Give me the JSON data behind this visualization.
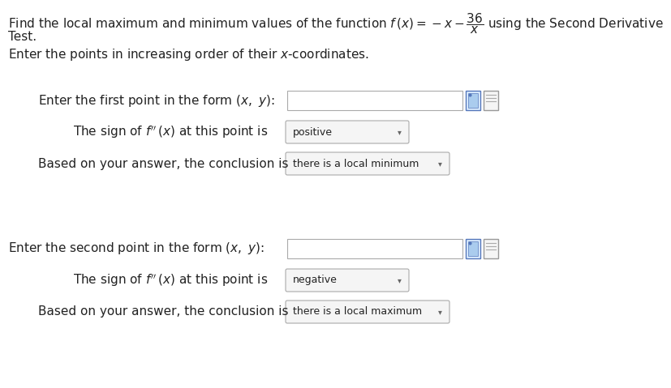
{
  "bg_color": "#ffffff",
  "text_color": "#222222",
  "box_edge_color": "#aaaaaa",
  "dropdown_color": "#f5f5f5",
  "icon_color1": "#5577bb",
  "icon_color2": "#aaaaaa",
  "font_size_title": 11.0,
  "font_size_body": 11.0,
  "font_size_small": 9.0,
  "title_line1": "Find the local maximum and minimum values of the function $f\\,(x) = -x - \\dfrac{36}{x}$ using the Second Derivative",
  "title_line2": "Test.",
  "subtitle": "Enter the points in increasing order of their $x$-coordinates.",
  "s1_label1": "Enter the first point in the form $(x,\\ y)$:",
  "s1_label2": "The sign of $f^{\\prime\\prime}\\,(x)$ at this point is",
  "s1_drop2": "positive",
  "s1_label3": "Based on your answer, the conclusion is",
  "s1_drop3": "there is a local minimum",
  "s2_label1": "Enter the second point in the form $(x,\\ y)$:",
  "s2_label2": "The sign of $f^{\\prime\\prime}\\,(x)$ at this point is",
  "s2_drop2": "negative",
  "s2_label3": "Based on your answer, the conclusion is",
  "s2_drop3": "there is a local maximum"
}
